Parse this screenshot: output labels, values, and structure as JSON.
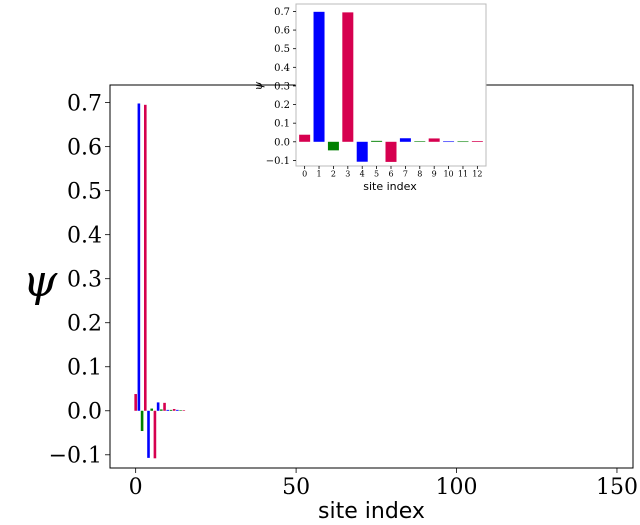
{
  "chart_data": [
    {
      "type": "bar",
      "role": "main",
      "xlabel": "site index",
      "ylabel": "ψ",
      "xlim": [
        -8,
        155
      ],
      "ylim": [
        -0.13,
        0.74
      ],
      "xticks": [
        0,
        50,
        100,
        150
      ],
      "yticks": [
        -0.1,
        0.0,
        0.1,
        0.2,
        0.3,
        0.4,
        0.5,
        0.6,
        0.7
      ],
      "ytick_labels": [
        "−0.1",
        "0.0",
        "0.1",
        "0.2",
        "0.3",
        "0.4",
        "0.5",
        "0.6",
        "0.7"
      ],
      "grid": false,
      "x": [
        0,
        1,
        2,
        3,
        4,
        5,
        6,
        7,
        8,
        9,
        10,
        11,
        12,
        13,
        14,
        15
      ],
      "values": [
        0.038,
        0.698,
        -0.046,
        0.695,
        -0.107,
        0.005,
        -0.108,
        0.019,
        0.003,
        0.018,
        0.002,
        0.002,
        0.004,
        0.002,
        0.001,
        0.001
      ],
      "colors": [
        "#d6004f",
        "#0000ff",
        "#008000",
        "#d6004f",
        "#0000ff",
        "#008000",
        "#d6004f",
        "#0000ff",
        "#008000",
        "#d6004f",
        "#0000ff",
        "#008000",
        "#d6004f",
        "#0000ff",
        "#008000",
        "#d6004f"
      ]
    },
    {
      "type": "bar",
      "role": "inset",
      "xlabel": "site index",
      "ylabel": "ψ",
      "xlim": [
        -0.6,
        12.6
      ],
      "ylim": [
        -0.13,
        0.74
      ],
      "xticks": [
        0,
        1,
        2,
        3,
        4,
        5,
        6,
        7,
        8,
        9,
        10,
        11,
        12
      ],
      "yticks": [
        -0.1,
        0.0,
        0.1,
        0.2,
        0.3,
        0.4,
        0.5,
        0.6,
        0.7
      ],
      "ytick_labels": [
        "−0.1",
        "0.0",
        "0.1",
        "0.2",
        "0.3",
        "0.4",
        "0.5",
        "0.6",
        "0.7"
      ],
      "grid": false,
      "x": [
        0,
        1,
        2,
        3,
        4,
        5,
        6,
        7,
        8,
        9,
        10,
        11,
        12
      ],
      "values": [
        0.038,
        0.698,
        -0.046,
        0.695,
        -0.107,
        0.005,
        -0.108,
        0.019,
        0.003,
        0.018,
        0.002,
        0.002,
        0.004
      ],
      "colors": [
        "#d6004f",
        "#0000ff",
        "#008000",
        "#d6004f",
        "#0000ff",
        "#008000",
        "#d6004f",
        "#0000ff",
        "#008000",
        "#d6004f",
        "#0000ff",
        "#008000",
        "#d6004f"
      ]
    }
  ]
}
